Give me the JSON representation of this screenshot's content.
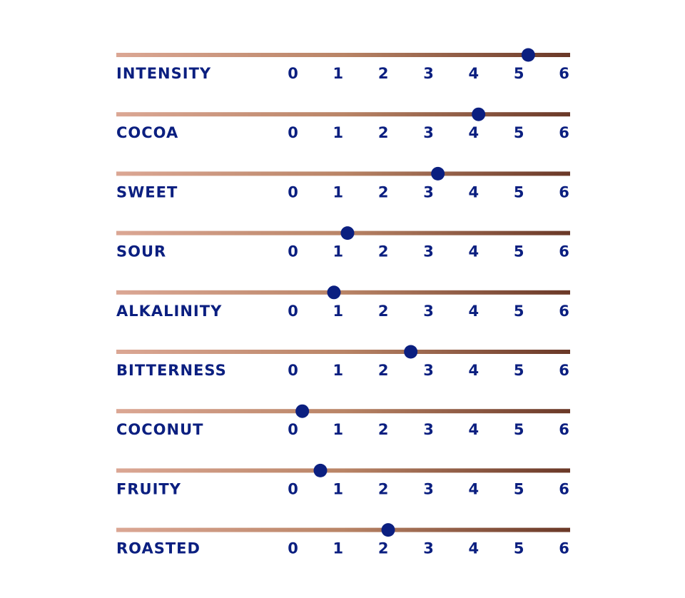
{
  "chart_data": {
    "type": "dot",
    "categories": [
      "INTENSITY",
      "COCOA",
      "SWEET",
      "SOUR",
      "ALKALINITY",
      "BITTERNESS",
      "COCONUT",
      "FRUITY",
      "ROASTED"
    ],
    "values": [
      5.2,
      4.1,
      3.2,
      1.2,
      0.9,
      2.6,
      0.2,
      0.6,
      2.1
    ],
    "color": "#0b1f80",
    "xlim": [
      0,
      6
    ],
    "xticks": [
      0,
      1,
      2,
      3,
      4,
      5,
      6
    ]
  }
}
